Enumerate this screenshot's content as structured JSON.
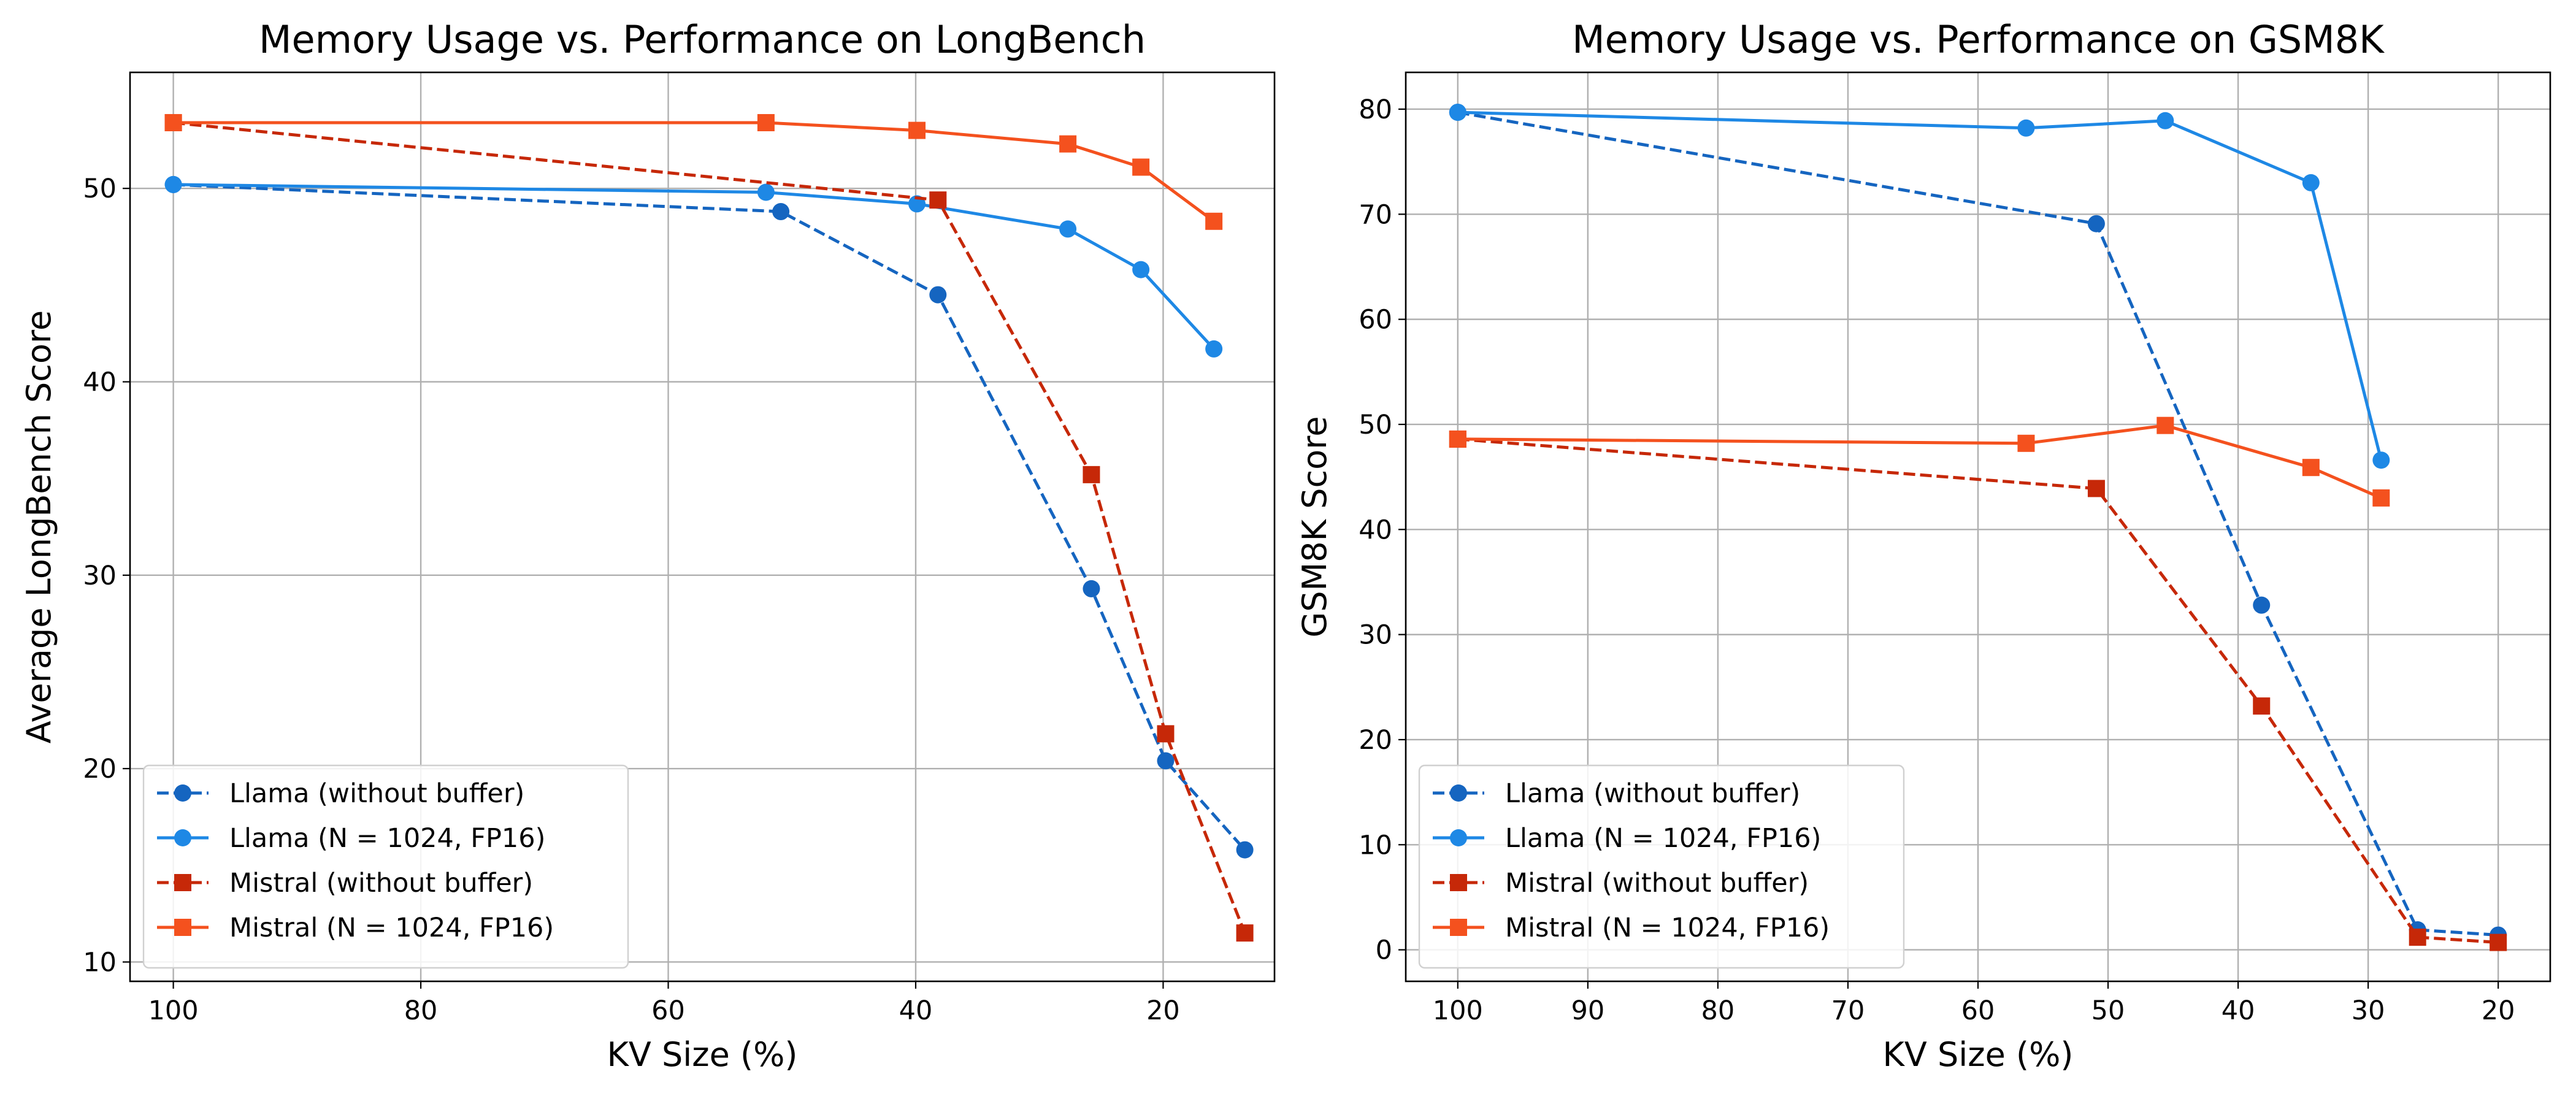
{
  "chart_data": [
    {
      "type": "line",
      "title": "Memory Usage vs. Performance on LongBench",
      "xlabel": "KV Size (%)",
      "ylabel": "Average LongBench Score",
      "xlim": [
        103.5,
        11.0
      ],
      "ylim": [
        9.0,
        56.0
      ],
      "xticks": [
        100,
        80,
        60,
        40,
        20
      ],
      "yticks": [
        10,
        20,
        30,
        40,
        50
      ],
      "grid": true,
      "legend_position": "lower-left",
      "series": [
        {
          "name": "Llama (without buffer)",
          "color": "#1565c0",
          "linestyle": "dashed",
          "marker": "circle",
          "x": [
            100,
            50.9,
            38.2,
            25.8,
            19.8,
            13.4
          ],
          "y": [
            50.2,
            48.8,
            44.5,
            29.3,
            20.4,
            15.8
          ]
        },
        {
          "name": "Llama (N = 1024, FP16)",
          "color": "#1e88e5",
          "linestyle": "solid",
          "marker": "circle",
          "x": [
            100,
            52.1,
            39.9,
            27.7,
            21.8,
            15.9
          ],
          "y": [
            50.2,
            49.8,
            49.2,
            47.9,
            45.8,
            41.7
          ]
        },
        {
          "name": "Mistral (without buffer)",
          "color": "#c62808",
          "linestyle": "dashed",
          "marker": "square",
          "x": [
            100,
            38.2,
            25.8,
            19.8,
            13.4
          ],
          "y": [
            53.4,
            49.4,
            35.2,
            21.8,
            11.5
          ]
        },
        {
          "name": "Mistral (N = 1024, FP16)",
          "color": "#f4511e",
          "linestyle": "solid",
          "marker": "square",
          "x": [
            100,
            52.1,
            39.9,
            27.7,
            21.8,
            15.9
          ],
          "y": [
            53.4,
            53.4,
            53.0,
            52.3,
            51.1,
            48.3
          ]
        }
      ]
    },
    {
      "type": "line",
      "title": "Memory Usage vs. Performance on GSM8K",
      "xlabel": "KV Size (%)",
      "ylabel": "GSM8K Score",
      "xlim": [
        104.0,
        16.0
      ],
      "ylim": [
        -3.0,
        83.5
      ],
      "xticks": [
        100,
        90,
        80,
        70,
        60,
        50,
        40,
        30,
        20
      ],
      "yticks": [
        0,
        10,
        20,
        30,
        40,
        50,
        60,
        70,
        80
      ],
      "grid": true,
      "legend_position": "lower-left",
      "series": [
        {
          "name": "Llama (without buffer)",
          "color": "#1565c0",
          "linestyle": "dashed",
          "marker": "circle",
          "x": [
            100,
            50.9,
            38.2,
            26.2,
            20.0
          ],
          "y": [
            79.7,
            69.1,
            32.8,
            1.9,
            1.4
          ]
        },
        {
          "name": "Llama (N = 1024, FP16)",
          "color": "#1e88e5",
          "linestyle": "solid",
          "marker": "circle",
          "x": [
            100,
            56.3,
            45.6,
            34.4,
            29.0
          ],
          "y": [
            79.7,
            78.2,
            78.9,
            73.0,
            46.6
          ]
        },
        {
          "name": "Mistral (without buffer)",
          "color": "#c62808",
          "linestyle": "dashed",
          "marker": "square",
          "x": [
            100,
            50.9,
            38.2,
            26.2,
            20.0
          ],
          "y": [
            48.6,
            43.9,
            23.2,
            1.2,
            0.7
          ]
        },
        {
          "name": "Mistral (N = 1024, FP16)",
          "color": "#f4511e",
          "linestyle": "solid",
          "marker": "square",
          "x": [
            100,
            56.3,
            45.6,
            34.4,
            29.0
          ],
          "y": [
            48.6,
            48.2,
            49.9,
            45.9,
            43.0
          ]
        }
      ]
    }
  ]
}
